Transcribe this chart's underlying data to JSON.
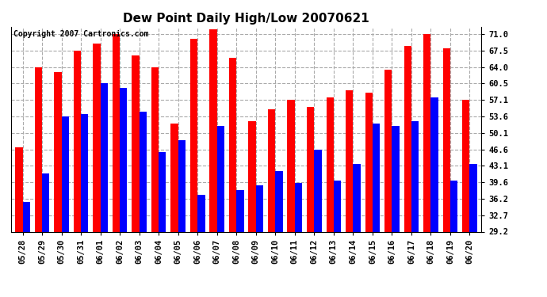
{
  "title": "Dew Point Daily High/Low 20070621",
  "copyright": "Copyright 2007 Cartronics.com",
  "dates": [
    "05/28",
    "05/29",
    "05/30",
    "05/31",
    "06/01",
    "06/02",
    "06/03",
    "06/04",
    "06/05",
    "06/06",
    "06/07",
    "06/08",
    "06/09",
    "06/10",
    "06/11",
    "06/12",
    "06/13",
    "06/14",
    "06/15",
    "06/16",
    "06/17",
    "06/18",
    "06/19",
    "06/20"
  ],
  "highs": [
    47.0,
    64.0,
    63.0,
    67.5,
    69.0,
    71.0,
    66.5,
    64.0,
    52.0,
    70.0,
    72.0,
    66.0,
    52.5,
    55.0,
    57.0,
    55.5,
    57.5,
    59.0,
    58.5,
    63.5,
    68.5,
    71.0,
    68.0,
    57.0
  ],
  "lows": [
    35.5,
    41.5,
    53.5,
    54.0,
    60.5,
    59.5,
    54.5,
    46.0,
    48.5,
    37.0,
    51.5,
    38.0,
    39.0,
    42.0,
    39.5,
    46.5,
    40.0,
    43.5,
    52.0,
    51.5,
    52.5,
    57.5,
    40.0,
    43.5
  ],
  "high_color": "#ff0000",
  "low_color": "#0000ff",
  "bg_color": "#ffffff",
  "plot_bg_color": "#ffffff",
  "grid_color": "#aaaaaa",
  "yticks": [
    29.2,
    32.7,
    36.2,
    39.6,
    43.1,
    46.6,
    50.1,
    53.6,
    57.1,
    60.5,
    64.0,
    67.5,
    71.0
  ],
  "ymin": 29.2,
  "ymax": 72.5,
  "bar_width": 0.38,
  "title_fontsize": 11,
  "tick_fontsize": 7.5,
  "copyright_fontsize": 7
}
